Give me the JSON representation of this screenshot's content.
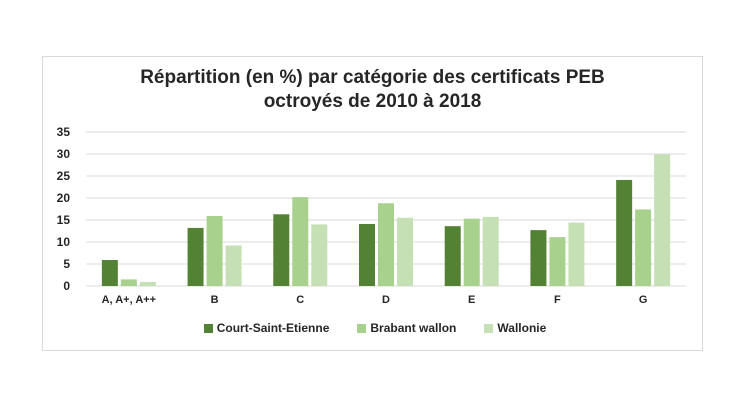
{
  "chart_data": {
    "type": "bar",
    "title": "Répartition (en %) par catégorie des certificats PEB octroyés de 2010 à 2018",
    "title_lines": [
      "Répartition (en %) par catégorie des certificats PEB",
      "octroyés de 2010 à 2018"
    ],
    "categories": [
      "A, A+, A++",
      "B",
      "C",
      "D",
      "E",
      "F",
      "G"
    ],
    "series": [
      {
        "name": "Court-Saint-Etienne",
        "color": "#548235",
        "values": [
          5.9,
          13.2,
          16.3,
          14.1,
          13.6,
          12.7,
          24.1
        ]
      },
      {
        "name": "Brabant wallon",
        "color": "#a9d18e",
        "values": [
          1.5,
          15.9,
          20.2,
          18.8,
          15.3,
          11.1,
          17.4
        ]
      },
      {
        "name": "Wallonie",
        "color": "#c5e0b4",
        "values": [
          0.9,
          9.2,
          14.0,
          15.5,
          15.7,
          14.4,
          29.9
        ]
      }
    ],
    "ylim": [
      0,
      35
    ],
    "yticks": [
      0,
      5,
      10,
      15,
      20,
      25,
      30,
      35
    ],
    "grid": true,
    "legend_position": "bottom"
  }
}
